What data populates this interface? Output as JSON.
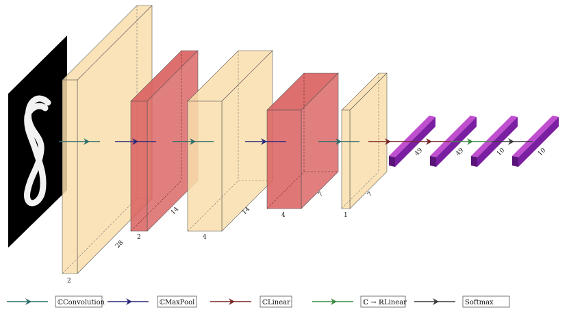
{
  "diagram": {
    "input": {
      "digit": "8"
    },
    "blocks": [
      {
        "id": "conv1",
        "kind": "conv",
        "depth_label": "2",
        "size_label": "28"
      },
      {
        "id": "pool1",
        "kind": "pool",
        "depth_label": "2",
        "size_label": "14"
      },
      {
        "id": "conv2",
        "kind": "conv",
        "depth_label": "4",
        "size_label": "14"
      },
      {
        "id": "pool2",
        "kind": "pool",
        "depth_label": "4",
        "size_label": "7"
      },
      {
        "id": "conv3",
        "kind": "conv",
        "depth_label": "1",
        "size_label": "7"
      }
    ],
    "dense": [
      {
        "id": "fc1",
        "label": "49"
      },
      {
        "id": "fc2",
        "label": "49"
      },
      {
        "id": "fc3",
        "label": "10"
      },
      {
        "id": "fc4",
        "label": "10"
      }
    ],
    "colors": {
      "conv": "#f9deab",
      "pool": "#d95f5f",
      "dense_front": "#7b1fa2",
      "dense_top": "#c04fd0",
      "dense_side": "#5a1479"
    }
  },
  "legend": [
    {
      "label": "ℂConvolution",
      "color": "#2e6e6a"
    },
    {
      "label": "ℂMaxPool",
      "color": "#2a2a7a"
    },
    {
      "label": "ℂLinear",
      "color": "#7a2626"
    },
    {
      "label": "ℂ → ℝLinear",
      "color": "#3c8a40"
    },
    {
      "label": "Softmax",
      "color": "#3a3a3a"
    }
  ]
}
